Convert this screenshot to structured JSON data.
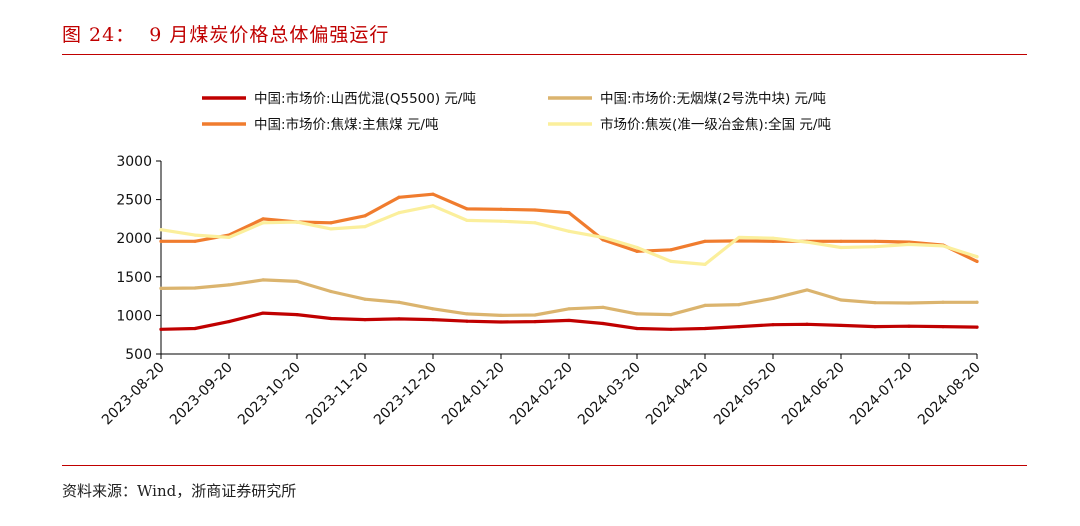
{
  "figure": {
    "title": "图 24：  9 月煤炭价格总体偏强运行",
    "source": "资料来源：Wind，浙商证券研究所"
  },
  "chart_data": {
    "type": "line",
    "title": "9 月煤炭价格总体偏强运行",
    "xlabel": "",
    "ylabel": "",
    "ylim": [
      500,
      3000
    ],
    "yticks": [
      500,
      1000,
      1500,
      2000,
      2500,
      3000
    ],
    "x": [
      "2023-08-20",
      "2023-09-05",
      "2023-09-20",
      "2023-10-05",
      "2023-10-20",
      "2023-11-05",
      "2023-11-20",
      "2023-12-05",
      "2023-12-20",
      "2024-01-05",
      "2024-01-20",
      "2024-02-05",
      "2024-02-20",
      "2024-03-05",
      "2024-03-20",
      "2024-04-05",
      "2024-04-20",
      "2024-05-05",
      "2024-05-20",
      "2024-06-05",
      "2024-06-20",
      "2024-07-05",
      "2024-07-20",
      "2024-08-05",
      "2024-08-20"
    ],
    "xtick_labels": [
      "2023-08-20",
      "2023-09-20",
      "2023-10-20",
      "2023-11-20",
      "2023-12-20",
      "2024-01-20",
      "2024-02-20",
      "2024-03-20",
      "2024-04-20",
      "2024-05-20",
      "2024-06-20",
      "2024-07-20",
      "2024-08-20"
    ],
    "series": [
      {
        "name": "中国:市场价:山西优混(Q5500) 元/吨",
        "color": "#c00000",
        "values": [
          820,
          830,
          920,
          1030,
          1010,
          960,
          945,
          955,
          945,
          925,
          915,
          920,
          935,
          895,
          830,
          820,
          830,
          855,
          880,
          885,
          870,
          855,
          860,
          855,
          848
        ]
      },
      {
        "name": "中国:市场价:无烟煤(2号洗中块) 元/吨",
        "color": "#dbb46e",
        "values": [
          1350,
          1355,
          1395,
          1460,
          1440,
          1310,
          1210,
          1170,
          1085,
          1020,
          1000,
          1005,
          1085,
          1105,
          1020,
          1010,
          1130,
          1140,
          1220,
          1330,
          1200,
          1165,
          1160,
          1170,
          1170
        ]
      },
      {
        "name": "中国:市场价:焦煤:主焦煤 元/吨",
        "color": "#f07c2e",
        "values": [
          1960,
          1960,
          2040,
          2250,
          2210,
          2200,
          2290,
          2530,
          2570,
          2380,
          2375,
          2365,
          2330,
          1980,
          1830,
          1850,
          1960,
          1965,
          1960,
          1960,
          1960,
          1960,
          1950,
          1910,
          1700
        ]
      },
      {
        "name": "市场价:焦炭(准一级冶金焦):全国 元/吨",
        "color": "#fbef9c",
        "values": [
          2110,
          2040,
          2010,
          2200,
          2210,
          2120,
          2150,
          2330,
          2420,
          2230,
          2220,
          2200,
          2090,
          2010,
          1880,
          1700,
          1660,
          2010,
          2000,
          1950,
          1880,
          1890,
          1920,
          1900,
          1760
        ]
      }
    ],
    "legend_position": "top",
    "grid": false
  }
}
